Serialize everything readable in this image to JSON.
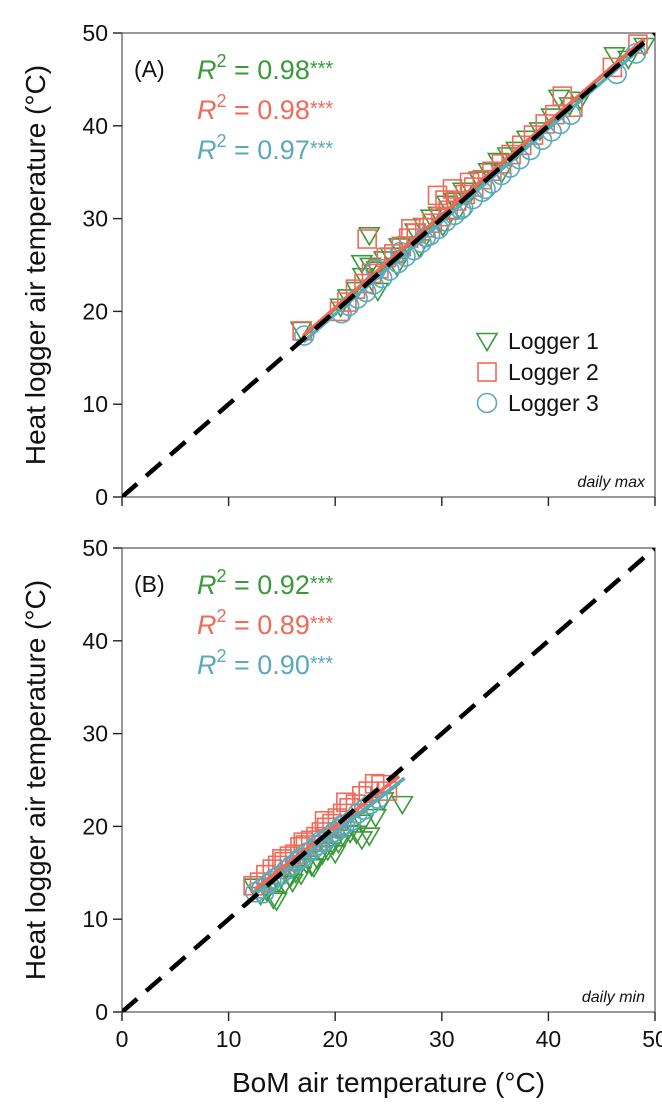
{
  "chart_data": [
    {
      "type": "scatter",
      "panel_label": "(A)",
      "corner_note": "daily max",
      "xlabel": "",
      "ylabel": "Heat logger air temperature (°C)",
      "xlim": [
        0,
        50
      ],
      "ylim": [
        0,
        50
      ],
      "xticks": [
        0,
        10,
        20,
        30,
        40,
        50
      ],
      "yticks": [
        0,
        10,
        20,
        30,
        40,
        50
      ],
      "x_tick_labels_visible": false,
      "one_to_one_line": true,
      "legend": {
        "position": "right-middle",
        "entries": [
          {
            "label": "Logger 1",
            "marker": "triangle-down",
            "color": "#3a9a3a"
          },
          {
            "label": "Logger 2",
            "marker": "square",
            "color": "#f06a5a"
          },
          {
            "label": "Logger 3",
            "marker": "circle",
            "color": "#5aaabb"
          }
        ]
      },
      "r2": [
        {
          "prefix": "R",
          "sup": "2",
          "text": " = 0.98",
          "stars": "***",
          "color": "#3a9a3a"
        },
        {
          "prefix": "R",
          "sup": "2",
          "text": " = 0.98",
          "stars": "***",
          "color": "#f06a5a"
        },
        {
          "prefix": "R",
          "sup": "2",
          "text": " = 0.97",
          "stars": "***",
          "color": "#5aaabb"
        }
      ],
      "series": [
        {
          "name": "Logger 1",
          "color": "#3a9a3a",
          "marker": "triangle-down",
          "fit": [
            17,
            49,
            1.0,
            0.3
          ],
          "x": [
            16.8,
            20.5,
            21.2,
            22.0,
            22.6,
            23.3,
            23.9,
            24.6,
            25.2,
            26.0,
            26.8,
            27.5,
            28.3,
            29.0,
            29.7,
            30.5,
            31.2,
            32.0,
            32.8,
            33.5,
            34.4,
            35.3,
            36.2,
            37.0,
            38.0,
            39.2,
            40.3,
            41.0,
            42.0,
            43.0,
            46.2,
            47.5,
            49.0,
            23.2,
            22.5,
            24.0,
            25.8,
            27.9,
            30.1,
            31.6,
            35.6
          ],
          "y": [
            18.0,
            20.5,
            21.5,
            22.3,
            23.8,
            24.9,
            24.5,
            25.6,
            26.0,
            27.0,
            27.2,
            28.6,
            29.2,
            30.1,
            30.4,
            31.6,
            31.9,
            33.0,
            33.0,
            34.2,
            35.1,
            36.2,
            36.8,
            37.4,
            38.6,
            39.5,
            41.0,
            43.0,
            42.2,
            42.8,
            47.6,
            47.2,
            48.6,
            28.2,
            25.2,
            22.2,
            24.9,
            26.9,
            29.2,
            31.0,
            34.9
          ]
        },
        {
          "name": "Logger 2",
          "color": "#f06a5a",
          "marker": "square",
          "fit": [
            17,
            49,
            1.0,
            0.4
          ],
          "x": [
            16.9,
            20.4,
            21.1,
            21.9,
            22.7,
            23.4,
            24.1,
            24.8,
            25.5,
            26.2,
            26.9,
            27.6,
            28.4,
            29.1,
            29.9,
            30.6,
            31.4,
            32.2,
            33.0,
            33.8,
            34.7,
            35.6,
            36.5,
            37.5,
            38.6,
            39.7,
            40.6,
            41.3,
            42.3,
            46.0,
            48.4,
            23.0,
            27.1,
            29.6,
            30.3,
            31.0,
            32.6
          ],
          "y": [
            17.9,
            20.0,
            21.0,
            22.4,
            23.0,
            24.1,
            24.6,
            25.8,
            26.2,
            27.0,
            27.9,
            28.4,
            29.0,
            29.5,
            30.2,
            30.9,
            31.9,
            32.6,
            33.4,
            34.2,
            35.1,
            35.9,
            36.9,
            37.9,
            39.0,
            40.2,
            41.2,
            43.2,
            42.0,
            46.3,
            48.8,
            27.8,
            28.9,
            32.5,
            32.0,
            33.2,
            33.9
          ]
        },
        {
          "name": "Logger 3",
          "color": "#5aaabb",
          "marker": "circle",
          "fit": [
            17,
            49,
            1.0,
            -0.3
          ],
          "x": [
            17.1,
            20.6,
            21.3,
            22.1,
            22.9,
            23.6,
            24.4,
            25.1,
            25.9,
            26.6,
            27.4,
            28.1,
            28.9,
            29.7,
            30.4,
            31.2,
            32.0,
            32.9,
            33.8,
            34.7,
            35.6,
            36.4,
            37.3,
            38.3,
            39.4,
            40.3,
            41.1,
            42.1,
            46.4,
            48.2,
            23.8,
            26.1,
            28.5,
            31.8,
            34.1
          ],
          "y": [
            17.4,
            19.8,
            20.6,
            21.4,
            22.1,
            22.9,
            23.6,
            24.4,
            25.2,
            25.9,
            26.6,
            27.4,
            28.2,
            28.9,
            29.7,
            30.4,
            31.2,
            32.1,
            32.9,
            33.8,
            34.7,
            35.5,
            36.4,
            37.4,
            38.5,
            39.4,
            40.2,
            41.2,
            45.6,
            47.8,
            24.5,
            26.4,
            28.0,
            31.0,
            33.2
          ]
        }
      ]
    },
    {
      "type": "scatter",
      "panel_label": "(B)",
      "corner_note": "daily min",
      "xlabel": "BoM air temperature (°C)",
      "ylabel": "Heat logger air temperature (°C)",
      "xlim": [
        0,
        50
      ],
      "ylim": [
        0,
        50
      ],
      "xticks": [
        0,
        10,
        20,
        30,
        40,
        50
      ],
      "yticks": [
        0,
        10,
        20,
        30,
        40,
        50
      ],
      "x_tick_labels_visible": true,
      "one_to_one_line": true,
      "r2": [
        {
          "prefix": "R",
          "sup": "2",
          "text": " = 0.92",
          "stars": "***",
          "color": "#3a9a3a"
        },
        {
          "prefix": "R",
          "sup": "2",
          "text": " = 0.89",
          "stars": "***",
          "color": "#f06a5a"
        },
        {
          "prefix": "R",
          "sup": "2",
          "text": " = 0.90",
          "stars": "***",
          "color": "#5aaabb"
        }
      ],
      "series": [
        {
          "name": "Logger 1",
          "color": "#3a9a3a",
          "marker": "triangle-down",
          "fit": [
            12.5,
            26,
            0.88,
            1.8
          ],
          "x": [
            12.4,
            13.0,
            13.6,
            14.2,
            14.7,
            15.3,
            15.8,
            16.3,
            16.8,
            17.3,
            17.8,
            18.3,
            18.8,
            19.3,
            19.8,
            20.3,
            20.8,
            21.4,
            22.0,
            22.6,
            23.2,
            23.8,
            24.5,
            26.3,
            14.5,
            16.0,
            18.0,
            20.0,
            22.5
          ],
          "y": [
            13.5,
            12.6,
            13.0,
            12.2,
            14.0,
            13.8,
            14.5,
            15.0,
            14.8,
            16.0,
            15.7,
            16.5,
            17.0,
            17.4,
            18.0,
            18.2,
            18.8,
            19.3,
            19.2,
            20.4,
            19.0,
            21.0,
            22.8,
            22.4,
            12.0,
            14.0,
            15.6,
            17.1,
            18.6
          ]
        },
        {
          "name": "Logger 2",
          "color": "#f06a5a",
          "marker": "square",
          "fit": [
            12.5,
            26,
            0.9,
            2.0
          ],
          "x": [
            12.3,
            12.9,
            13.5,
            14.1,
            14.6,
            15.2,
            15.7,
            16.2,
            16.7,
            17.2,
            17.7,
            18.2,
            18.7,
            19.2,
            19.7,
            20.2,
            20.7,
            21.3,
            21.9,
            22.5,
            23.1,
            23.7,
            24.3,
            24.9,
            15.0,
            17.0,
            19.0,
            21.0
          ],
          "y": [
            13.6,
            14.0,
            14.8,
            15.4,
            15.8,
            16.2,
            16.8,
            17.0,
            17.8,
            18.0,
            18.5,
            18.9,
            19.4,
            19.9,
            20.3,
            20.9,
            21.4,
            22.0,
            22.4,
            23.3,
            23.8,
            24.6,
            24.5,
            23.8,
            16.5,
            18.3,
            20.6,
            22.6
          ]
        },
        {
          "name": "Logger 3",
          "color": "#5aaabb",
          "marker": "circle",
          "fit": [
            12.5,
            26.5,
            0.89,
            1.6
          ],
          "x": [
            12.5,
            13.1,
            13.7,
            14.3,
            14.8,
            15.4,
            15.9,
            16.4,
            16.9,
            17.4,
            17.9,
            18.4,
            18.9,
            19.4,
            19.9,
            20.4,
            20.9,
            21.5,
            22.1,
            22.7,
            23.3,
            24.0,
            14.0,
            16.6,
            18.6,
            20.6,
            13.3
          ],
          "y": [
            12.9,
            13.3,
            13.8,
            14.4,
            14.7,
            15.3,
            15.8,
            16.2,
            16.6,
            17.2,
            17.5,
            18.0,
            18.3,
            18.8,
            19.4,
            19.7,
            20.2,
            20.6,
            21.4,
            21.8,
            22.4,
            23.0,
            14.1,
            16.5,
            18.4,
            20.1,
            12.8
          ]
        }
      ]
    }
  ]
}
